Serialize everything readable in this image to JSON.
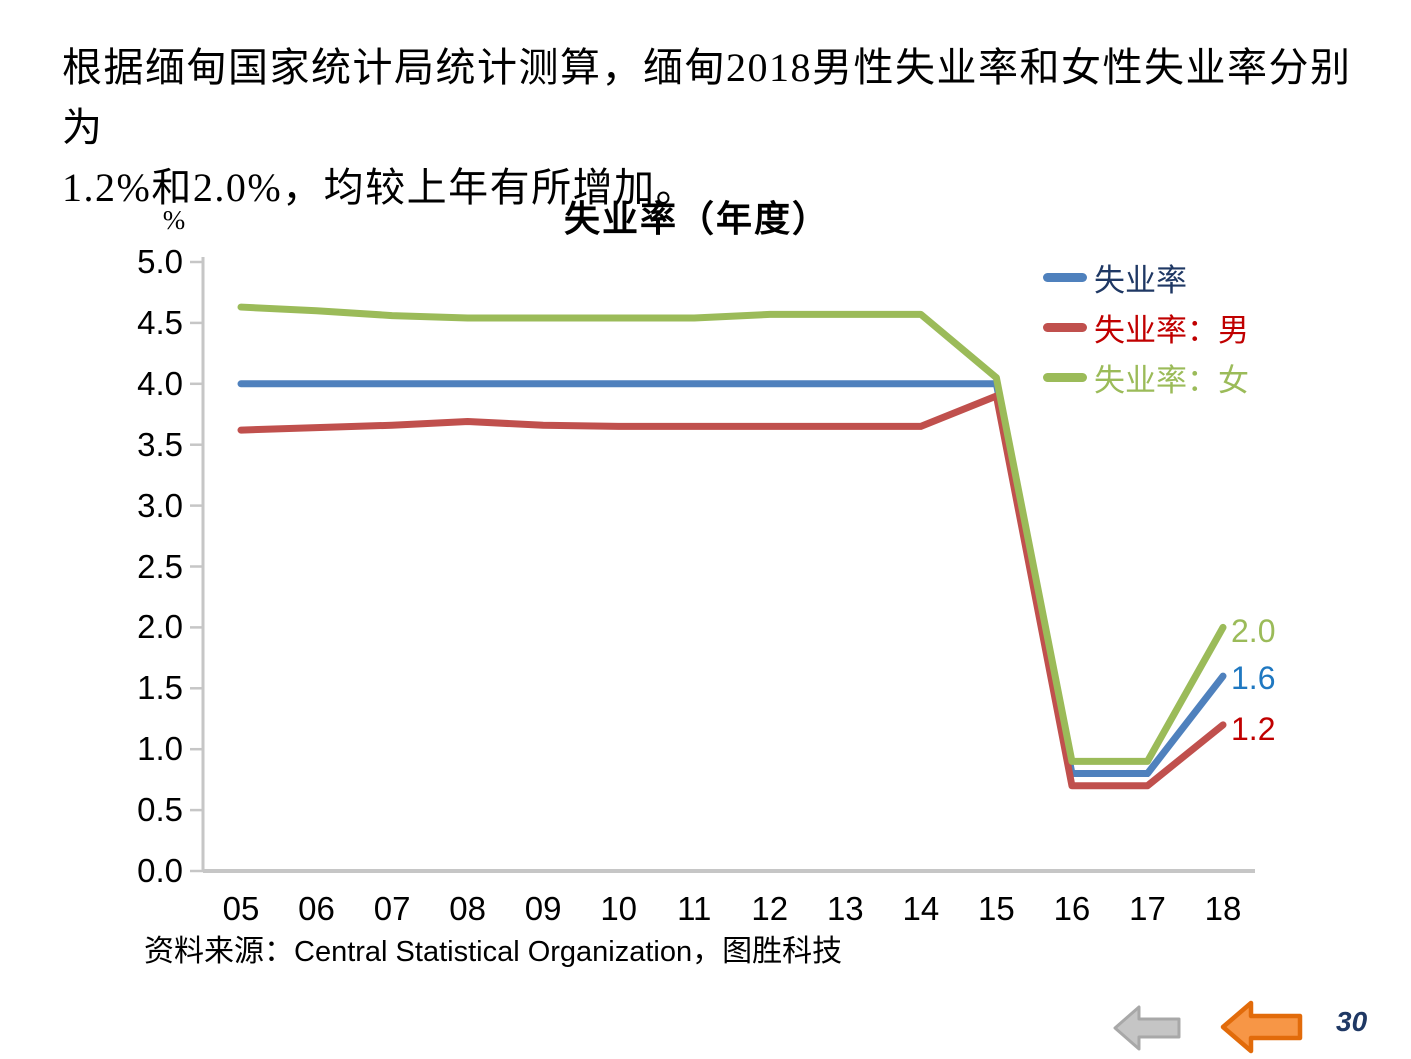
{
  "header": {
    "line1": "根据缅甸国家统计局统计测算，缅甸2018男性失业率和女性失业率分别为",
    "line2": "1.2%和2.0%，均较上年有所增加。"
  },
  "chart_data": {
    "type": "line",
    "title": "失业率（年度）",
    "unit_label": "%",
    "categories": [
      "05",
      "06",
      "07",
      "08",
      "09",
      "10",
      "11",
      "12",
      "13",
      "14",
      "15",
      "16",
      "17",
      "18"
    ],
    "y_ticks": [
      "5.0",
      "4.5",
      "4.0",
      "3.5",
      "3.0",
      "2.5",
      "2.0",
      "1.5",
      "1.0",
      "0.5",
      "0.0"
    ],
    "ylim": [
      0,
      5
    ],
    "grid": false,
    "legend_position": "top-right-inside",
    "axis_color": "#C6C6C6",
    "series": [
      {
        "key": "total",
        "name": "失业率",
        "color": "#4F81BD",
        "legend_text_color": "#1F3864",
        "value_label": "1.6",
        "value_label_color": "#1F78C1",
        "values": [
          4.0,
          4.0,
          4.0,
          4.0,
          4.0,
          4.0,
          4.0,
          4.0,
          4.0,
          4.0,
          4.0,
          0.8,
          0.8,
          1.6
        ]
      },
      {
        "key": "male",
        "name": "失业率：男",
        "color": "#C0504D",
        "legend_text_color": "#C00000",
        "value_label": "1.2",
        "value_label_color": "#C00000",
        "values": [
          3.62,
          3.64,
          3.66,
          3.69,
          3.66,
          3.65,
          3.65,
          3.65,
          3.65,
          3.65,
          3.9,
          0.7,
          0.7,
          1.2
        ]
      },
      {
        "key": "female",
        "name": "失业率：女",
        "color": "#9BBB59",
        "legend_text_color": "#9BBB59",
        "value_label": "2.0",
        "value_label_color": "#9BBB59",
        "values": [
          4.63,
          4.6,
          4.56,
          4.54,
          4.54,
          4.54,
          4.54,
          4.57,
          4.57,
          4.57,
          4.05,
          0.9,
          0.9,
          2.0
        ]
      }
    ],
    "source": {
      "prefix": "资料来源：",
      "org": "Central Statistical Organization",
      "suffix": "，图胜科技"
    }
  },
  "footer": {
    "page_number": "30",
    "page_number_color": "#1F3864",
    "nav": {
      "back_gray": {
        "fill": "#C5C5C5",
        "stroke": "#A8A8A8"
      },
      "back_orange": {
        "fill": "#F79646",
        "stroke": "#E26B0A"
      }
    }
  }
}
